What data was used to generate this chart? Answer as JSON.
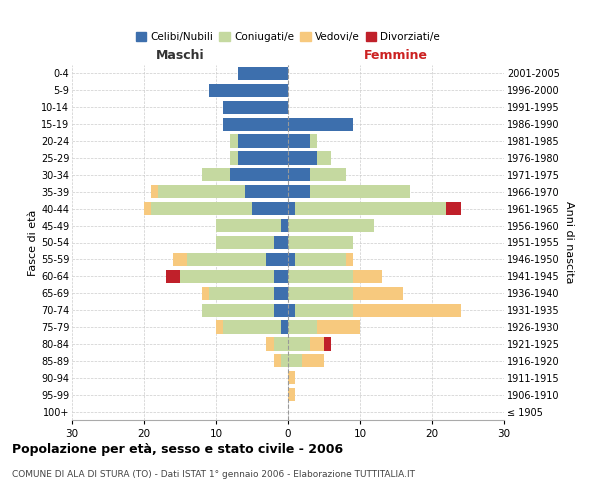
{
  "age_groups": [
    "100+",
    "95-99",
    "90-94",
    "85-89",
    "80-84",
    "75-79",
    "70-74",
    "65-69",
    "60-64",
    "55-59",
    "50-54",
    "45-49",
    "40-44",
    "35-39",
    "30-34",
    "25-29",
    "20-24",
    "15-19",
    "10-14",
    "5-9",
    "0-4"
  ],
  "birth_years": [
    "≤ 1905",
    "1906-1910",
    "1911-1915",
    "1916-1920",
    "1921-1925",
    "1926-1930",
    "1931-1935",
    "1936-1940",
    "1941-1945",
    "1946-1950",
    "1951-1955",
    "1956-1960",
    "1961-1965",
    "1966-1970",
    "1971-1975",
    "1976-1980",
    "1981-1985",
    "1986-1990",
    "1991-1995",
    "1996-2000",
    "2001-2005"
  ],
  "males": {
    "celibe": [
      0,
      0,
      0,
      0,
      0,
      1,
      2,
      2,
      2,
      3,
      2,
      1,
      5,
      6,
      8,
      7,
      7,
      9,
      9,
      11,
      7
    ],
    "coniugato": [
      0,
      0,
      0,
      1,
      2,
      8,
      10,
      9,
      13,
      11,
      8,
      9,
      14,
      12,
      4,
      1,
      1,
      0,
      0,
      0,
      0
    ],
    "vedovo": [
      0,
      0,
      0,
      1,
      1,
      1,
      0,
      1,
      0,
      2,
      0,
      0,
      1,
      1,
      0,
      0,
      0,
      0,
      0,
      0,
      0
    ],
    "divorziato": [
      0,
      0,
      0,
      0,
      0,
      0,
      0,
      0,
      2,
      0,
      0,
      0,
      0,
      0,
      0,
      0,
      0,
      0,
      0,
      0,
      0
    ]
  },
  "females": {
    "nubile": [
      0,
      0,
      0,
      0,
      0,
      0,
      1,
      0,
      0,
      1,
      0,
      0,
      1,
      3,
      3,
      4,
      3,
      9,
      0,
      0,
      0
    ],
    "coniugata": [
      0,
      0,
      0,
      2,
      3,
      4,
      8,
      9,
      9,
      7,
      9,
      12,
      21,
      14,
      5,
      2,
      1,
      0,
      0,
      0,
      0
    ],
    "vedova": [
      0,
      1,
      1,
      3,
      2,
      6,
      15,
      7,
      4,
      1,
      0,
      0,
      0,
      0,
      0,
      0,
      0,
      0,
      0,
      0,
      0
    ],
    "divorziata": [
      0,
      0,
      0,
      0,
      1,
      0,
      0,
      0,
      0,
      0,
      0,
      0,
      2,
      0,
      0,
      0,
      0,
      0,
      0,
      0,
      0
    ]
  },
  "colors": {
    "celibe": "#3d6fad",
    "coniugato": "#c5d9a0",
    "vedovo": "#f7c97e",
    "divorziato": "#c0202a"
  },
  "title": "Popolazione per età, sesso e stato civile - 2006",
  "subtitle": "COMUNE DI ALA DI STURA (TO) - Dati ISTAT 1° gennaio 2006 - Elaborazione TUTTITALIA.IT",
  "xlabel_left": "Maschi",
  "xlabel_right": "Femmine",
  "ylabel_left": "Fasce di età",
  "ylabel_right": "Anni di nascita",
  "xlim": 30,
  "legend_labels": [
    "Celibi/Nubili",
    "Coniugati/e",
    "Vedovi/e",
    "Divorziati/e"
  ],
  "background_color": "#ffffff",
  "grid_color": "#cccccc"
}
